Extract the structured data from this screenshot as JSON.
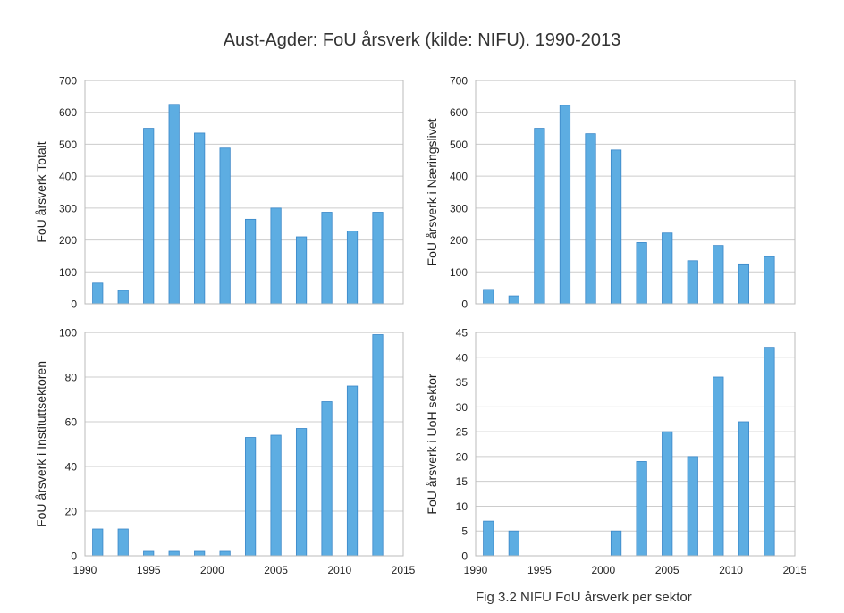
{
  "figure": {
    "title": "Aust-Agder: FoU årsverk (kilde: NIFU). 1990-2013",
    "caption": "Fig 3.2 NIFU FoU årsverk per sektor",
    "bar_color": "#5DADE2",
    "bar_edge_color": "#3A87C8",
    "grid_color": "#cccccc",
    "axes_edge_color": "#bbbbbb"
  },
  "chart_data": [
    {
      "type": "bar",
      "ylabel": "FoU årsverk Totalt",
      "x": [
        1991,
        1993,
        1995,
        1997,
        1999,
        2001,
        2003,
        2005,
        2007,
        2009,
        2011,
        2013
      ],
      "values": [
        65,
        42,
        550,
        625,
        535,
        488,
        265,
        300,
        210,
        287,
        228,
        287
      ],
      "xlim": [
        1990,
        2015
      ],
      "ylim": [
        0,
        700
      ],
      "yticks": [
        0,
        100,
        200,
        300,
        400,
        500,
        600,
        700
      ],
      "xticks": [],
      "grid": true
    },
    {
      "type": "bar",
      "ylabel": "FoU årsverk i Næringslivet",
      "x": [
        1991,
        1993,
        1995,
        1997,
        1999,
        2001,
        2003,
        2005,
        2007,
        2009,
        2011,
        2013
      ],
      "values": [
        45,
        25,
        550,
        622,
        533,
        482,
        192,
        222,
        135,
        183,
        125,
        148
      ],
      "xlim": [
        1990,
        2015
      ],
      "ylim": [
        0,
        700
      ],
      "yticks": [
        0,
        100,
        200,
        300,
        400,
        500,
        600,
        700
      ],
      "xticks": [],
      "grid": true
    },
    {
      "type": "bar",
      "ylabel": "FoU årsverk i Instituttsektoren",
      "x": [
        1991,
        1993,
        1995,
        1997,
        1999,
        2001,
        2003,
        2005,
        2007,
        2009,
        2011,
        2013
      ],
      "values": [
        12,
        12,
        2,
        2,
        2,
        2,
        53,
        54,
        57,
        69,
        76,
        99
      ],
      "xlim": [
        1990,
        2015
      ],
      "ylim": [
        0,
        100
      ],
      "yticks": [
        0,
        20,
        40,
        60,
        80,
        100
      ],
      "xticks": [
        1990,
        1995,
        2000,
        2005,
        2010,
        2015
      ],
      "grid": true
    },
    {
      "type": "bar",
      "ylabel": "FoU årsverk i UoH sektor",
      "x": [
        1991,
        1993,
        1995,
        1997,
        1999,
        2001,
        2003,
        2005,
        2007,
        2009,
        2011,
        2013
      ],
      "values": [
        7,
        5,
        0,
        0,
        0,
        5,
        19,
        25,
        20,
        36,
        27,
        42
      ],
      "xlim": [
        1990,
        2015
      ],
      "ylim": [
        0,
        45
      ],
      "yticks": [
        0,
        5,
        10,
        15,
        20,
        25,
        30,
        35,
        40,
        45
      ],
      "xticks": [
        1990,
        1995,
        2000,
        2005,
        2010,
        2015
      ],
      "grid": true
    }
  ]
}
